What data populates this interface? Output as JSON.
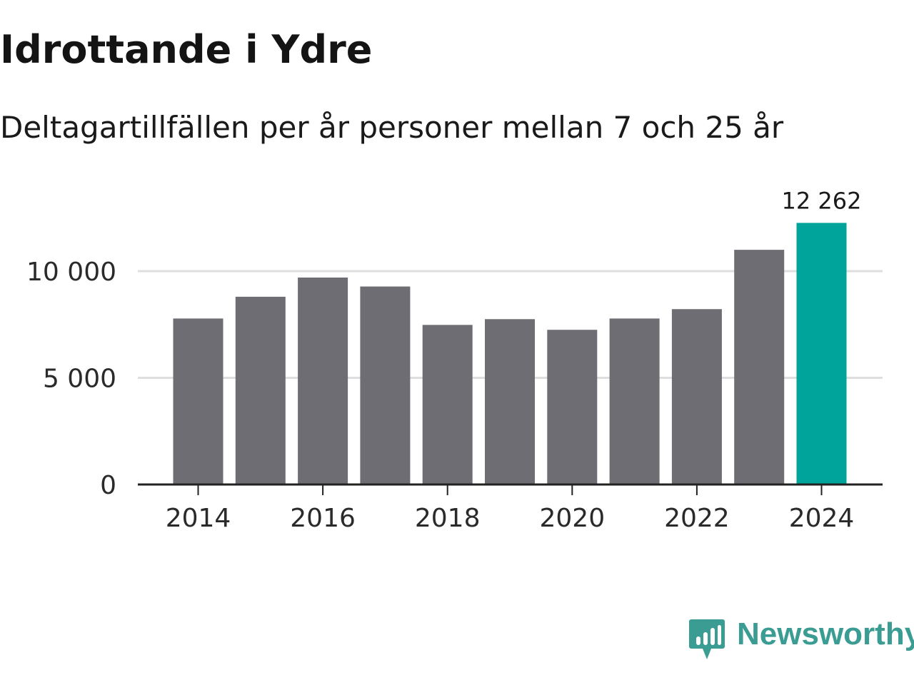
{
  "title": "Idrottande i Ydre",
  "subtitle": "Deltagartillfällen per år personer mellan 7 och 25 år",
  "brand": {
    "name": "Newsworthy",
    "icon": "newsworthy-logo-icon",
    "color": "#3a9c92"
  },
  "colors": {
    "bar": "#6e6d73",
    "highlight": "#00a49a",
    "grid": "#dedede",
    "axis": "#222222"
  },
  "chart_data": {
    "type": "bar",
    "categories": [
      "2014",
      "2015",
      "2016",
      "2017",
      "2018",
      "2019",
      "2020",
      "2021",
      "2022",
      "2023",
      "2024"
    ],
    "values": [
      7780,
      8800,
      9700,
      9280,
      7480,
      7750,
      7250,
      7780,
      8220,
      11000,
      12262
    ],
    "highlight_index": 10,
    "data_labels": [
      {
        "index": 10,
        "text": "12 262"
      }
    ],
    "x_ticks": [
      "2014",
      "2016",
      "2018",
      "2020",
      "2022",
      "2024"
    ],
    "y_ticks": [
      {
        "value": 0,
        "label": "0"
      },
      {
        "value": 5000,
        "label": "5 000"
      },
      {
        "value": 10000,
        "label": "10 000"
      }
    ],
    "ylim": [
      0,
      12262
    ],
    "xlabel": "",
    "ylabel": "",
    "grid": true
  }
}
